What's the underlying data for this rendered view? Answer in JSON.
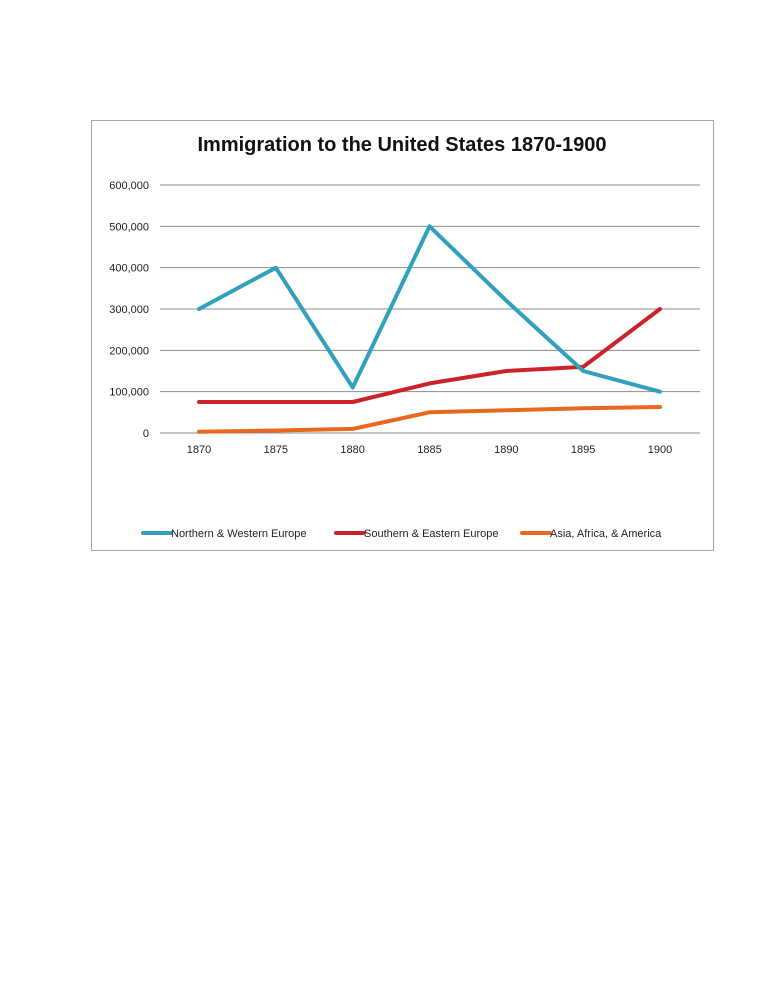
{
  "chart_data": {
    "type": "line",
    "title": "Immigration to the United States 1870-1900",
    "xlabel": "",
    "ylabel": "",
    "x": [
      "1870",
      "1875",
      "1880",
      "1885",
      "1890",
      "1895",
      "1900"
    ],
    "ylim": [
      0,
      600000
    ],
    "yticks": [
      "0",
      "100,000",
      "200,000",
      "300,000",
      "400,000",
      "500,000",
      "600,000"
    ],
    "grid": true,
    "legend_position": "bottom",
    "series": [
      {
        "name": "Northern & Western Europe",
        "color": "#31a0bd",
        "values": [
          300000,
          400000,
          110000,
          500000,
          320000,
          150000,
          100000
        ]
      },
      {
        "name": "Southern & Eastern Europe",
        "color": "#cc2229",
        "values": [
          75000,
          75000,
          75000,
          120000,
          150000,
          160000,
          300000
        ]
      },
      {
        "name": "Asia, Africa, & America",
        "color": "#e8681e",
        "values": [
          3000,
          6000,
          10000,
          50000,
          55000,
          60000,
          63000
        ]
      }
    ]
  }
}
